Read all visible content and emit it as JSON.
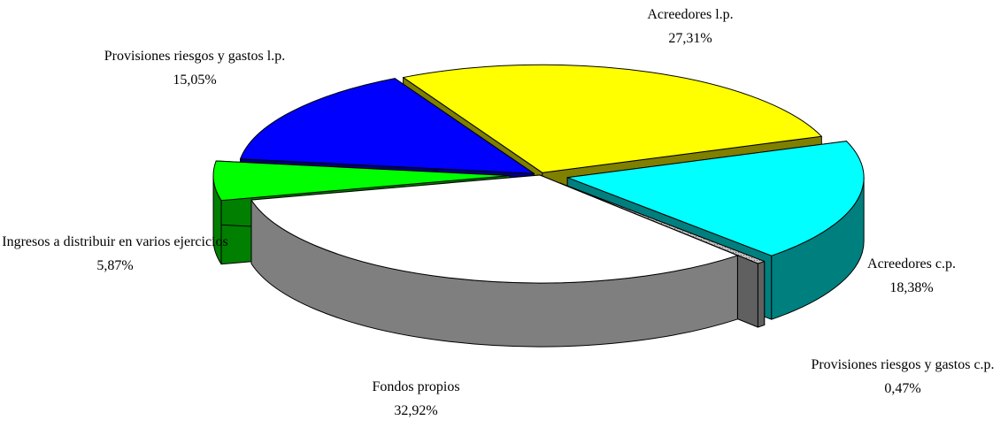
{
  "chart_data": {
    "type": "pie",
    "categories": [
      "Acreedores l.p.",
      "Acreedores c.p.",
      "Provisiones riesgos y gastos c.p.",
      "Fondos propios",
      "Ingresos a distribuir en varios ejercicios",
      "Provisiones riesgos y gastos l.p."
    ],
    "values": [
      27.31,
      18.38,
      0.47,
      32.92,
      5.87,
      15.05
    ],
    "value_labels": [
      "27,31%",
      "18,38%",
      "0,47%",
      "32,92%",
      "5,87%",
      "15,05%"
    ],
    "colors": [
      "#ffff00",
      "#00ffff",
      "#c0c0c0",
      "#ffffff",
      "#00ff00",
      "#0000ff"
    ]
  }
}
